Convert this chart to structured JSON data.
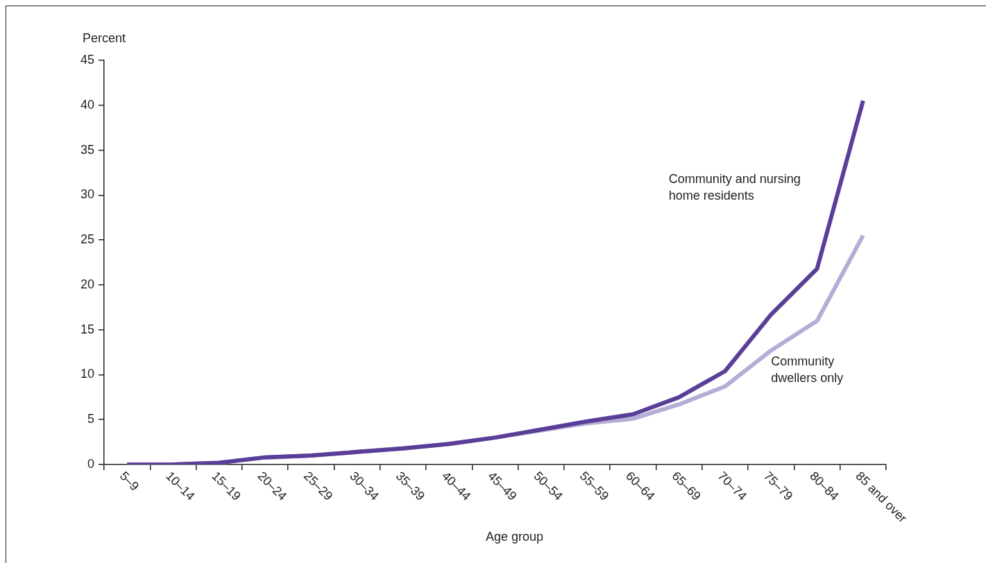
{
  "chart_data": {
    "type": "line",
    "ylabel": "Percent",
    "xlabel": "Age group",
    "categories": [
      "5–9",
      "10–14",
      "15–19",
      "20–24",
      "25–29",
      "30–34",
      "35–39",
      "40–44",
      "45–49",
      "50–54",
      "55–59",
      "60–64",
      "65–69",
      "70–74",
      "75–79",
      "80–84",
      "85 and over"
    ],
    "series": [
      {
        "name": "Community and nursing home residents",
        "color": "#5a3e98",
        "values": [
          0,
          0,
          0.2,
          0.8,
          1.0,
          1.4,
          1.8,
          2.3,
          3.0,
          3.9,
          4.8,
          5.6,
          7.5,
          10.4,
          16.7,
          21.8,
          40.5
        ]
      },
      {
        "name": "Community dwellers only",
        "color": "#b4add6",
        "values": [
          0,
          0,
          0.2,
          0.8,
          1.0,
          1.4,
          1.8,
          2.3,
          3.0,
          3.8,
          4.6,
          5.1,
          6.7,
          8.7,
          12.7,
          16.0,
          25.5
        ]
      }
    ],
    "ylim": [
      0,
      45
    ],
    "yticks": [
      0,
      5,
      10,
      15,
      20,
      25,
      30,
      35,
      40,
      45
    ],
    "grid": false,
    "legend": false,
    "marker": "none",
    "line_style": "solid"
  }
}
